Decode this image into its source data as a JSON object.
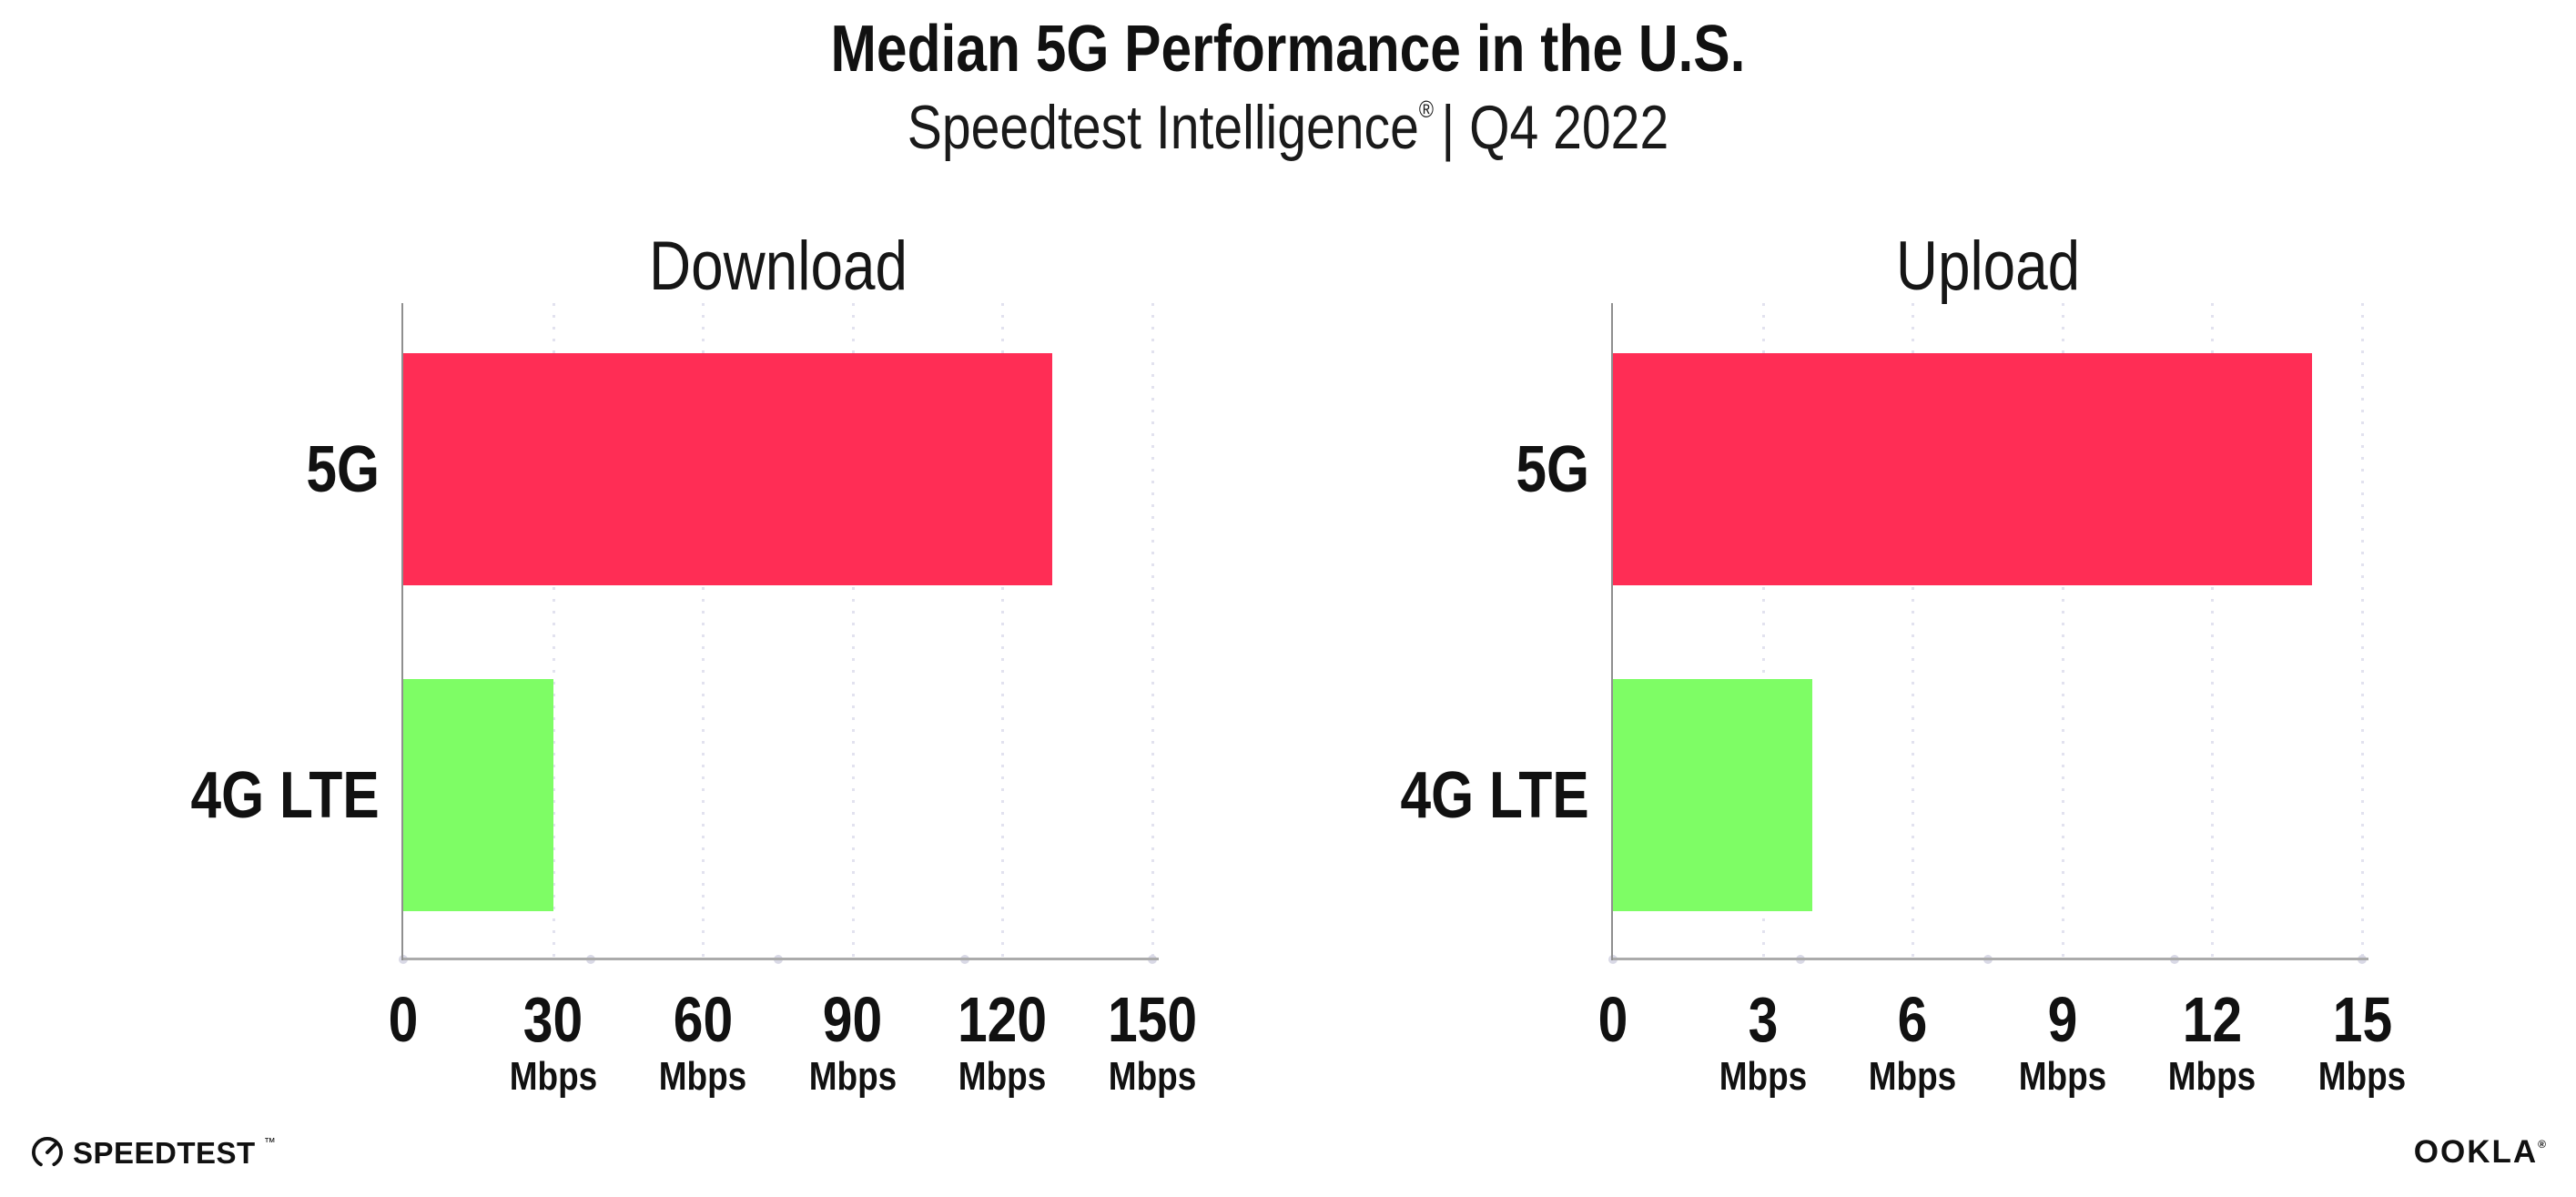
{
  "header": {
    "title": "Median 5G Performance in the U.S.",
    "subtitle_brand": "Speedtest Intelligence",
    "subtitle_reg": "®",
    "subtitle_rest": "| Q4 2022"
  },
  "chart_data": [
    {
      "type": "bar",
      "orientation": "horizontal",
      "title": "Download",
      "categories": [
        "5G",
        "4G LTE"
      ],
      "values": [
        130,
        30
      ],
      "unit": "Mbps",
      "xlim": [
        0,
        150
      ],
      "xticks": [
        0,
        30,
        60,
        90,
        120,
        150
      ],
      "grid": "vertical-dotted",
      "legend": "none",
      "bar_colors": [
        "#FF2D55",
        "#7EFD65"
      ]
    },
    {
      "type": "bar",
      "orientation": "horizontal",
      "title": "Upload",
      "categories": [
        "5G",
        "4G LTE"
      ],
      "values": [
        14,
        4
      ],
      "unit": "Mbps",
      "xlim": [
        0,
        15
      ],
      "xticks": [
        0,
        3,
        6,
        9,
        12,
        15
      ],
      "grid": "vertical-dotted",
      "legend": "none",
      "bar_colors": [
        "#FF2D55",
        "#7EFD65"
      ]
    }
  ],
  "colors": {
    "bar_5g": "#FF2D55",
    "bar_4g_lte": "#7EFD65",
    "axis": "#8f8f8f",
    "gridline": "#e2e2ef",
    "text": "#111111"
  },
  "footer": {
    "speedtest_label": "SPEEDTEST",
    "speedtest_mark": "™",
    "ookla_label": "OOKLA",
    "ookla_mark": "®"
  }
}
